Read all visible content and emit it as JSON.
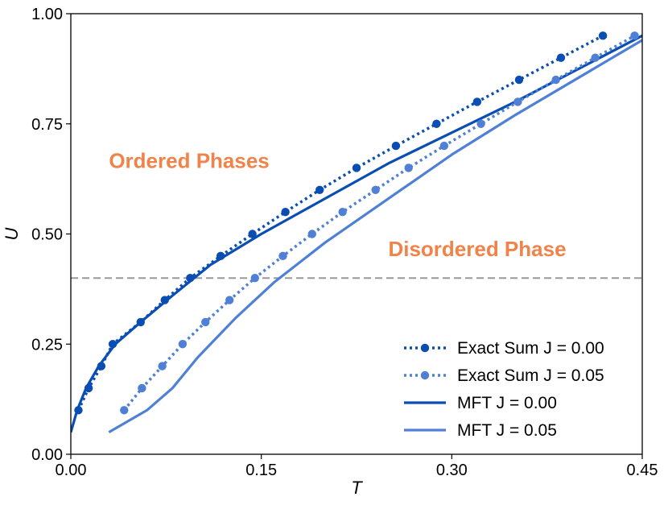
{
  "chart_data": {
    "type": "line",
    "title": "",
    "xlabel": "T",
    "ylabel": "U",
    "xlim": [
      0.0,
      0.45
    ],
    "ylim": [
      0.0,
      1.0
    ],
    "xticks": [
      "0.00",
      "0.15",
      "0.30",
      "0.45"
    ],
    "yticks": [
      "0.00",
      "0.25",
      "0.50",
      "0.75",
      "1.00"
    ],
    "xtick_values": [
      0.0,
      0.15,
      0.3,
      0.45
    ],
    "ytick_values": [
      0.0,
      0.25,
      0.5,
      0.75,
      1.0
    ],
    "grid": false,
    "legend_position": "bottom-right",
    "reference_line": {
      "y": 0.4,
      "style": "dashed",
      "color": "#999999"
    },
    "annotations": [
      {
        "text": "Ordered Phases",
        "x": 0.03,
        "y": 0.65,
        "color": "#F0834A"
      },
      {
        "text": "Disordered Phase",
        "x": 0.25,
        "y": 0.45,
        "color": "#F0834A"
      }
    ],
    "series": [
      {
        "name": "Exact Sum J = 0.00",
        "style": "dotted-markers",
        "color": "#0A4DB3",
        "x": [
          0.006,
          0.014,
          0.024,
          0.033,
          0.055,
          0.074,
          0.094,
          0.118,
          0.143,
          0.169,
          0.196,
          0.225,
          0.256,
          0.288,
          0.32,
          0.353,
          0.386,
          0.419
        ],
        "y": [
          0.1,
          0.15,
          0.2,
          0.25,
          0.3,
          0.35,
          0.4,
          0.45,
          0.5,
          0.55,
          0.6,
          0.65,
          0.7,
          0.75,
          0.8,
          0.85,
          0.9,
          0.95
        ]
      },
      {
        "name": "Exact Sum J = 0.05",
        "style": "dotted-markers",
        "color": "#4F80D6",
        "x": [
          0.042,
          0.056,
          0.072,
          0.088,
          0.106,
          0.125,
          0.145,
          0.167,
          0.19,
          0.214,
          0.24,
          0.266,
          0.294,
          0.323,
          0.352,
          0.382,
          0.413,
          0.444
        ],
        "y": [
          0.1,
          0.15,
          0.2,
          0.25,
          0.3,
          0.35,
          0.4,
          0.45,
          0.5,
          0.55,
          0.6,
          0.65,
          0.7,
          0.75,
          0.8,
          0.85,
          0.9,
          0.95
        ]
      },
      {
        "name": "MFT J = 0.00",
        "style": "solid",
        "color": "#0A4DB3",
        "x": [
          0.0,
          0.005,
          0.012,
          0.022,
          0.035,
          0.055,
          0.08,
          0.11,
          0.15,
          0.2,
          0.25,
          0.3,
          0.35,
          0.4,
          0.45
        ],
        "y": [
          0.05,
          0.1,
          0.15,
          0.2,
          0.25,
          0.3,
          0.36,
          0.43,
          0.5,
          0.58,
          0.66,
          0.73,
          0.8,
          0.875,
          0.95
        ]
      },
      {
        "name": "MFT J = 0.05",
        "style": "solid",
        "color": "#4F80D6",
        "x": [
          0.03,
          0.06,
          0.08,
          0.1,
          0.13,
          0.16,
          0.2,
          0.25,
          0.3,
          0.35,
          0.4,
          0.45
        ],
        "y": [
          0.05,
          0.1,
          0.15,
          0.22,
          0.31,
          0.39,
          0.48,
          0.58,
          0.68,
          0.77,
          0.855,
          0.94
        ]
      }
    ]
  }
}
